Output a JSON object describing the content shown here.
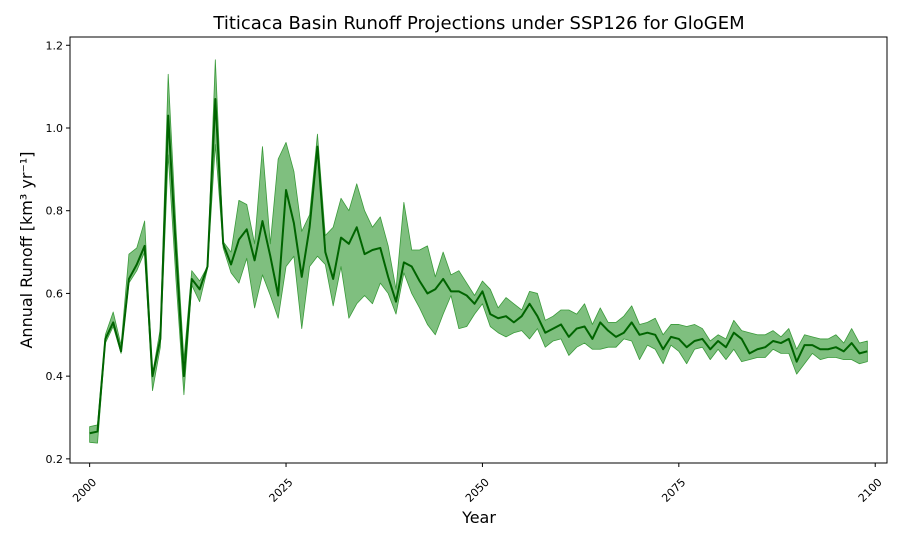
{
  "chart_data": {
    "type": "area",
    "title": "Titicaca Basin Runoff Projections under SSP126 for GloGEM",
    "xlabel": "Year",
    "ylabel": "Annual Runoff [km³ yr⁻¹]",
    "xlim": [
      1997.5,
      2101.5
    ],
    "ylim": [
      0.19,
      1.22
    ],
    "xticks": [
      2000,
      2025,
      2050,
      2075,
      2100
    ],
    "yticks": [
      0.2,
      0.4,
      0.6,
      0.8,
      1.0,
      1.2
    ],
    "grid": false,
    "colors": {
      "line": "#006400",
      "band": "#7fbf7f",
      "band_edge": "#3a9a3a"
    },
    "x": [
      2000,
      2001,
      2002,
      2003,
      2004,
      2005,
      2006,
      2007,
      2008,
      2009,
      2010,
      2011,
      2012,
      2013,
      2014,
      2015,
      2016,
      2017,
      2018,
      2019,
      2020,
      2021,
      2022,
      2023,
      2024,
      2025,
      2026,
      2027,
      2028,
      2029,
      2030,
      2031,
      2032,
      2033,
      2034,
      2035,
      2036,
      2037,
      2038,
      2039,
      2040,
      2041,
      2042,
      2043,
      2044,
      2045,
      2046,
      2047,
      2048,
      2049,
      2050,
      2051,
      2052,
      2053,
      2054,
      2055,
      2056,
      2057,
      2058,
      2059,
      2060,
      2061,
      2062,
      2063,
      2064,
      2065,
      2066,
      2067,
      2068,
      2069,
      2070,
      2071,
      2072,
      2073,
      2074,
      2075,
      2076,
      2077,
      2078,
      2079,
      2080,
      2081,
      2082,
      2083,
      2084,
      2085,
      2086,
      2087,
      2088,
      2089,
      2090,
      2091,
      2092,
      2093,
      2094,
      2095,
      2096,
      2097,
      2098,
      2099
    ],
    "series": [
      {
        "role": "mean",
        "values": [
          0.262,
          0.266,
          0.49,
          0.53,
          0.46,
          0.635,
          0.67,
          0.715,
          0.4,
          0.49,
          1.03,
          0.7,
          0.4,
          0.635,
          0.61,
          0.665,
          1.07,
          0.72,
          0.67,
          0.73,
          0.755,
          0.68,
          0.775,
          0.69,
          0.595,
          0.85,
          0.77,
          0.64,
          0.76,
          0.955,
          0.7,
          0.635,
          0.735,
          0.72,
          0.76,
          0.695,
          0.705,
          0.71,
          0.64,
          0.58,
          0.675,
          0.665,
          0.63,
          0.6,
          0.61,
          0.635,
          0.605,
          0.605,
          0.595,
          0.575,
          0.605,
          0.55,
          0.54,
          0.545,
          0.53,
          0.545,
          0.575,
          0.545,
          0.505,
          0.515,
          0.525,
          0.495,
          0.515,
          0.52,
          0.49,
          0.53,
          0.51,
          0.495,
          0.505,
          0.53,
          0.5,
          0.505,
          0.5,
          0.465,
          0.495,
          0.49,
          0.47,
          0.485,
          0.49,
          0.465,
          0.485,
          0.47,
          0.505,
          0.49,
          0.455,
          0.465,
          0.47,
          0.485,
          0.48,
          0.49,
          0.435,
          0.475,
          0.475,
          0.465,
          0.465,
          0.47,
          0.46,
          0.48,
          0.455,
          0.46
        ]
      },
      {
        "role": "upper",
        "values": [
          0.278,
          0.282,
          0.5,
          0.555,
          0.475,
          0.695,
          0.71,
          0.775,
          0.405,
          0.515,
          1.13,
          0.755,
          0.44,
          0.655,
          0.63,
          0.665,
          1.165,
          0.725,
          0.7,
          0.825,
          0.815,
          0.72,
          0.955,
          0.72,
          0.925,
          0.965,
          0.895,
          0.75,
          0.79,
          0.985,
          0.74,
          0.76,
          0.83,
          0.8,
          0.865,
          0.8,
          0.76,
          0.785,
          0.715,
          0.61,
          0.82,
          0.705,
          0.705,
          0.715,
          0.64,
          0.7,
          0.645,
          0.655,
          0.625,
          0.595,
          0.63,
          0.61,
          0.565,
          0.59,
          0.575,
          0.56,
          0.605,
          0.6,
          0.535,
          0.545,
          0.56,
          0.56,
          0.55,
          0.575,
          0.525,
          0.565,
          0.53,
          0.53,
          0.545,
          0.57,
          0.525,
          0.53,
          0.54,
          0.5,
          0.525,
          0.525,
          0.52,
          0.525,
          0.515,
          0.485,
          0.5,
          0.49,
          0.535,
          0.51,
          0.505,
          0.5,
          0.5,
          0.51,
          0.495,
          0.515,
          0.465,
          0.5,
          0.495,
          0.49,
          0.49,
          0.5,
          0.48,
          0.515,
          0.48,
          0.485
        ]
      },
      {
        "role": "lower",
        "values": [
          0.24,
          0.238,
          0.48,
          0.52,
          0.455,
          0.625,
          0.655,
          0.7,
          0.365,
          0.47,
          0.935,
          0.63,
          0.355,
          0.62,
          0.58,
          0.66,
          0.96,
          0.71,
          0.65,
          0.625,
          0.685,
          0.565,
          0.645,
          0.595,
          0.54,
          0.665,
          0.69,
          0.515,
          0.665,
          0.69,
          0.67,
          0.57,
          0.665,
          0.54,
          0.575,
          0.595,
          0.575,
          0.625,
          0.6,
          0.55,
          0.65,
          0.6,
          0.565,
          0.525,
          0.5,
          0.55,
          0.595,
          0.515,
          0.52,
          0.55,
          0.575,
          0.52,
          0.505,
          0.495,
          0.505,
          0.51,
          0.49,
          0.515,
          0.47,
          0.485,
          0.49,
          0.45,
          0.47,
          0.48,
          0.465,
          0.465,
          0.47,
          0.47,
          0.49,
          0.485,
          0.44,
          0.475,
          0.465,
          0.43,
          0.475,
          0.46,
          0.43,
          0.465,
          0.47,
          0.44,
          0.465,
          0.44,
          0.465,
          0.435,
          0.44,
          0.445,
          0.445,
          0.465,
          0.455,
          0.455,
          0.405,
          0.43,
          0.455,
          0.44,
          0.445,
          0.445,
          0.44,
          0.44,
          0.43,
          0.435
        ]
      }
    ]
  }
}
